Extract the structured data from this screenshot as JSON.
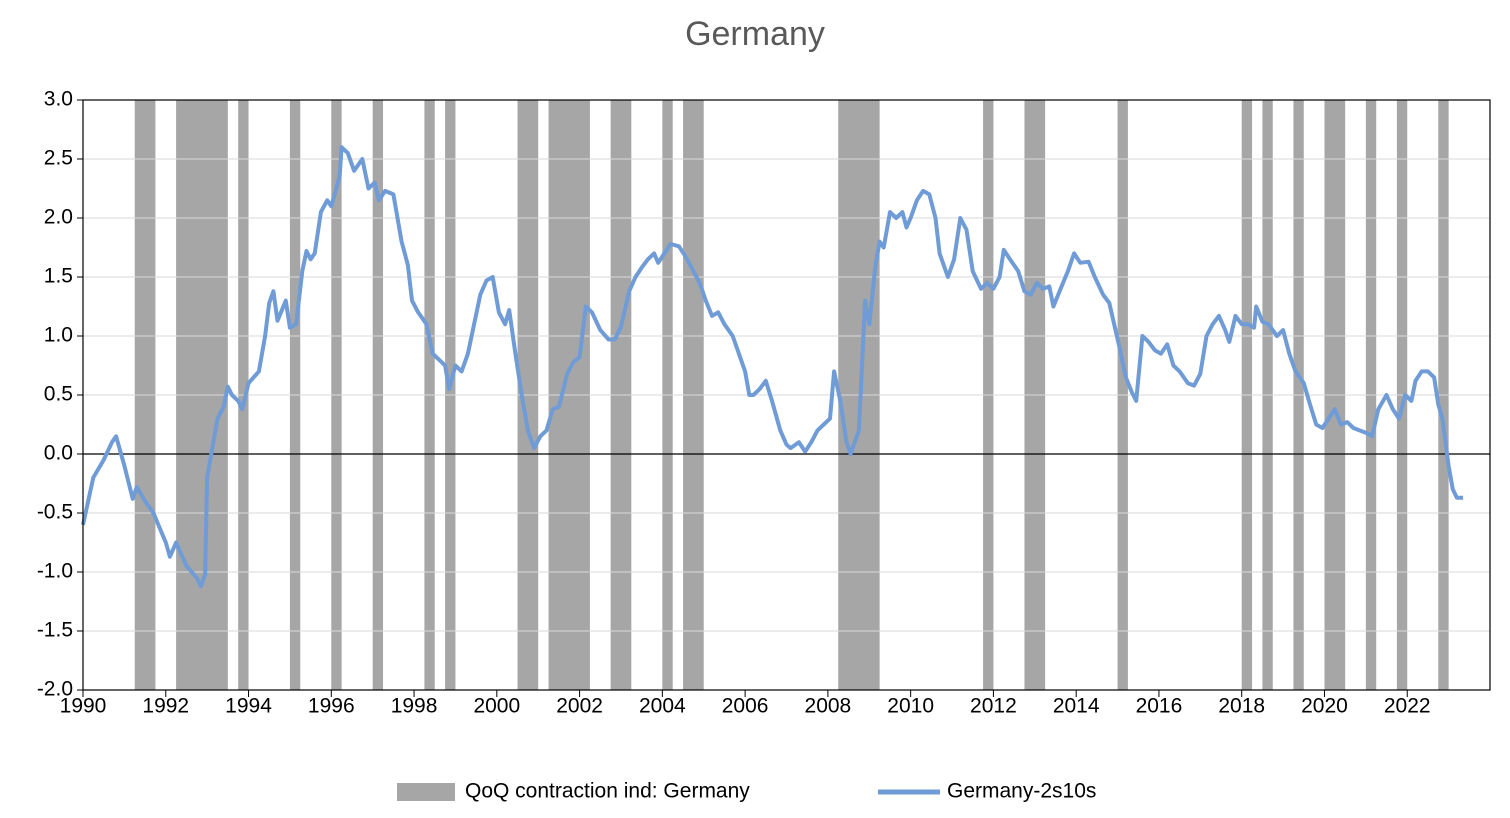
{
  "chart_data": {
    "type": "line",
    "title": "Germany",
    "xlim": [
      1990,
      2024
    ],
    "xticks": [
      1990,
      1992,
      1994,
      1996,
      1998,
      2000,
      2002,
      2004,
      2006,
      2008,
      2010,
      2012,
      2014,
      2016,
      2018,
      2020,
      2022
    ],
    "ylim": [
      -2,
      3
    ],
    "yticks": [
      {
        "value": -2,
        "label": "-2.0"
      },
      -1.5,
      {
        "value": -1,
        "label": "-1.0"
      },
      -0.5,
      {
        "value": 0,
        "label": "0.0"
      },
      0.5,
      {
        "value": 1,
        "label": "1.0"
      },
      1.5,
      {
        "value": 2,
        "label": "2.0"
      },
      2.5,
      {
        "value": 3,
        "label": "3.0"
      }
    ],
    "grid": true,
    "zero_line": true,
    "legend": "bottom",
    "shaded": {
      "name": "QoQ contraction ind: Germany",
      "color": "#a6a6a6",
      "periods": [
        [
          1991.25,
          1991.75
        ],
        [
          1992.25,
          1993.5
        ],
        [
          1993.75,
          1994.0
        ],
        [
          1995.0,
          1995.25
        ],
        [
          1996.0,
          1996.25
        ],
        [
          1997.0,
          1997.25
        ],
        [
          1998.25,
          1998.5
        ],
        [
          1998.75,
          1999.0
        ],
        [
          2000.5,
          2001.0
        ],
        [
          2001.25,
          2002.25
        ],
        [
          2002.75,
          2003.25
        ],
        [
          2004.0,
          2004.25
        ],
        [
          2004.5,
          2005.0
        ],
        [
          2008.25,
          2009.25
        ],
        [
          2011.75,
          2012.0
        ],
        [
          2012.75,
          2013.25
        ],
        [
          2015.0,
          2015.25
        ],
        [
          2018.0,
          2018.25
        ],
        [
          2018.5,
          2018.75
        ],
        [
          2019.25,
          2019.5
        ],
        [
          2020.0,
          2020.5
        ],
        [
          2021.0,
          2021.25
        ],
        [
          2021.75,
          2022.0
        ],
        [
          2022.75,
          2023.0
        ]
      ]
    },
    "series": [
      {
        "name": "Germany-2s10s",
        "color": "#6f9bd7",
        "x": [
          1990.0,
          1990.25,
          1990.5,
          1990.7,
          1990.8,
          1991.0,
          1991.2,
          1991.3,
          1991.5,
          1991.7,
          1992.0,
          1992.1,
          1992.25,
          1992.5,
          1992.75,
          1992.85,
          1992.95,
          1993.0,
          1993.1,
          1993.25,
          1993.4,
          1993.5,
          1993.6,
          1993.75,
          1993.85,
          1994.0,
          1994.25,
          1994.4,
          1994.5,
          1994.6,
          1994.7,
          1994.9,
          1995.0,
          1995.15,
          1995.3,
          1995.4,
          1995.5,
          1995.6,
          1995.75,
          1995.9,
          1996.0,
          1996.2,
          1996.25,
          1996.4,
          1996.55,
          1996.75,
          1996.9,
          1997.05,
          1997.15,
          1997.3,
          1997.5,
          1997.7,
          1997.85,
          1997.95,
          1998.1,
          1998.3,
          1998.45,
          1998.6,
          1998.75,
          1998.85,
          1999.0,
          1999.15,
          1999.3,
          1999.45,
          1999.6,
          1999.75,
          1999.9,
          2000.05,
          2000.2,
          2000.3,
          2000.45,
          2000.6,
          2000.75,
          2000.9,
          2001.05,
          2001.2,
          2001.35,
          2001.5,
          2001.7,
          2001.85,
          2002.0,
          2002.15,
          2002.3,
          2002.5,
          2002.7,
          2002.85,
          2003.0,
          2003.2,
          2003.35,
          2003.5,
          2003.65,
          2003.8,
          2003.9,
          2004.05,
          2004.2,
          2004.4,
          2004.55,
          2004.75,
          2004.9,
          2005.05,
          2005.2,
          2005.35,
          2005.5,
          2005.7,
          2005.85,
          2006.0,
          2006.1,
          2006.2,
          2006.35,
          2006.5,
          2006.65,
          2006.85,
          2007.0,
          2007.1,
          2007.3,
          2007.45,
          2007.6,
          2007.75,
          2007.9,
          2008.05,
          2008.15,
          2008.3,
          2008.45,
          2008.55,
          2008.75,
          2008.9,
          2009.0,
          2009.15,
          2009.25,
          2009.35,
          2009.5,
          2009.65,
          2009.8,
          2009.9,
          2010.0,
          2010.15,
          2010.3,
          2010.45,
          2010.6,
          2010.7,
          2010.9,
          2011.05,
          2011.2,
          2011.35,
          2011.5,
          2011.7,
          2011.85,
          2012.0,
          2012.15,
          2012.25,
          2012.4,
          2012.6,
          2012.75,
          2012.9,
          2013.05,
          2013.2,
          2013.35,
          2013.45,
          2013.6,
          2013.8,
          2013.95,
          2014.1,
          2014.3,
          2014.45,
          2014.65,
          2014.8,
          2014.95,
          2015.05,
          2015.2,
          2015.35,
          2015.45,
          2015.6,
          2015.75,
          2015.9,
          2016.05,
          2016.2,
          2016.35,
          2016.5,
          2016.7,
          2016.85,
          2017.0,
          2017.15,
          2017.3,
          2017.45,
          2017.6,
          2017.7,
          2017.85,
          2018.0,
          2018.15,
          2018.3,
          2018.35,
          2018.5,
          2018.65,
          2018.85,
          2019.0,
          2019.15,
          2019.3,
          2019.5,
          2019.65,
          2019.8,
          2019.95,
          2020.1,
          2020.25,
          2020.4,
          2020.55,
          2020.7,
          2020.85,
          2021.0,
          2021.15,
          2021.3,
          2021.5,
          2021.65,
          2021.8,
          2021.95,
          2022.1,
          2022.2,
          2022.35,
          2022.5,
          2022.65,
          2022.75,
          2022.85,
          2023.0,
          2023.1,
          2023.2,
          2023.35
        ],
        "values": [
          -0.6,
          -0.2,
          -0.05,
          0.1,
          0.15,
          -0.1,
          -0.38,
          -0.28,
          -0.4,
          -0.5,
          -0.75,
          -0.87,
          -0.75,
          -0.95,
          -1.05,
          -1.12,
          -1.02,
          -0.2,
          0.0,
          0.3,
          0.4,
          0.57,
          0.5,
          0.45,
          0.38,
          0.6,
          0.7,
          1.0,
          1.28,
          1.38,
          1.13,
          1.3,
          1.07,
          1.1,
          1.55,
          1.72,
          1.65,
          1.7,
          2.05,
          2.15,
          2.1,
          2.35,
          2.6,
          2.55,
          2.4,
          2.5,
          2.25,
          2.3,
          2.15,
          2.23,
          2.2,
          1.8,
          1.6,
          1.3,
          1.2,
          1.1,
          0.85,
          0.8,
          0.75,
          0.55,
          0.75,
          0.7,
          0.85,
          1.1,
          1.35,
          1.47,
          1.5,
          1.2,
          1.1,
          1.22,
          0.85,
          0.5,
          0.2,
          0.05,
          0.15,
          0.2,
          0.38,
          0.4,
          0.68,
          0.78,
          0.82,
          1.25,
          1.2,
          1.05,
          0.97,
          0.97,
          1.08,
          1.38,
          1.5,
          1.58,
          1.65,
          1.7,
          1.62,
          1.7,
          1.78,
          1.76,
          1.68,
          1.55,
          1.45,
          1.3,
          1.17,
          1.2,
          1.1,
          1.0,
          0.85,
          0.7,
          0.5,
          0.5,
          0.55,
          0.62,
          0.45,
          0.2,
          0.08,
          0.05,
          0.1,
          0.02,
          0.1,
          0.2,
          0.25,
          0.3,
          0.7,
          0.45,
          0.1,
          0.0,
          0.2,
          1.3,
          1.1,
          1.6,
          1.8,
          1.75,
          2.05,
          2.0,
          2.05,
          1.92,
          2.0,
          2.15,
          2.23,
          2.2,
          2.0,
          1.7,
          1.5,
          1.65,
          2.0,
          1.9,
          1.55,
          1.4,
          1.45,
          1.4,
          1.5,
          1.73,
          1.65,
          1.55,
          1.38,
          1.35,
          1.45,
          1.4,
          1.42,
          1.25,
          1.38,
          1.55,
          1.7,
          1.62,
          1.63,
          1.5,
          1.35,
          1.28,
          1.05,
          0.9,
          0.65,
          0.52,
          0.45,
          1.0,
          0.95,
          0.88,
          0.85,
          0.93,
          0.75,
          0.7,
          0.6,
          0.58,
          0.68,
          1.0,
          1.1,
          1.17,
          1.05,
          0.95,
          1.17,
          1.1,
          1.1,
          1.07,
          1.25,
          1.12,
          1.1,
          1.0,
          1.05,
          0.85,
          0.7,
          0.6,
          0.42,
          0.25,
          0.22,
          0.3,
          0.38,
          0.25,
          0.27,
          0.22,
          0.2,
          0.18,
          0.15,
          0.38,
          0.5,
          0.38,
          0.3,
          0.5,
          0.45,
          0.62,
          0.7,
          0.7,
          0.65,
          0.42,
          0.3,
          -0.1,
          -0.3,
          -0.37,
          -0.37
        ]
      }
    ]
  }
}
